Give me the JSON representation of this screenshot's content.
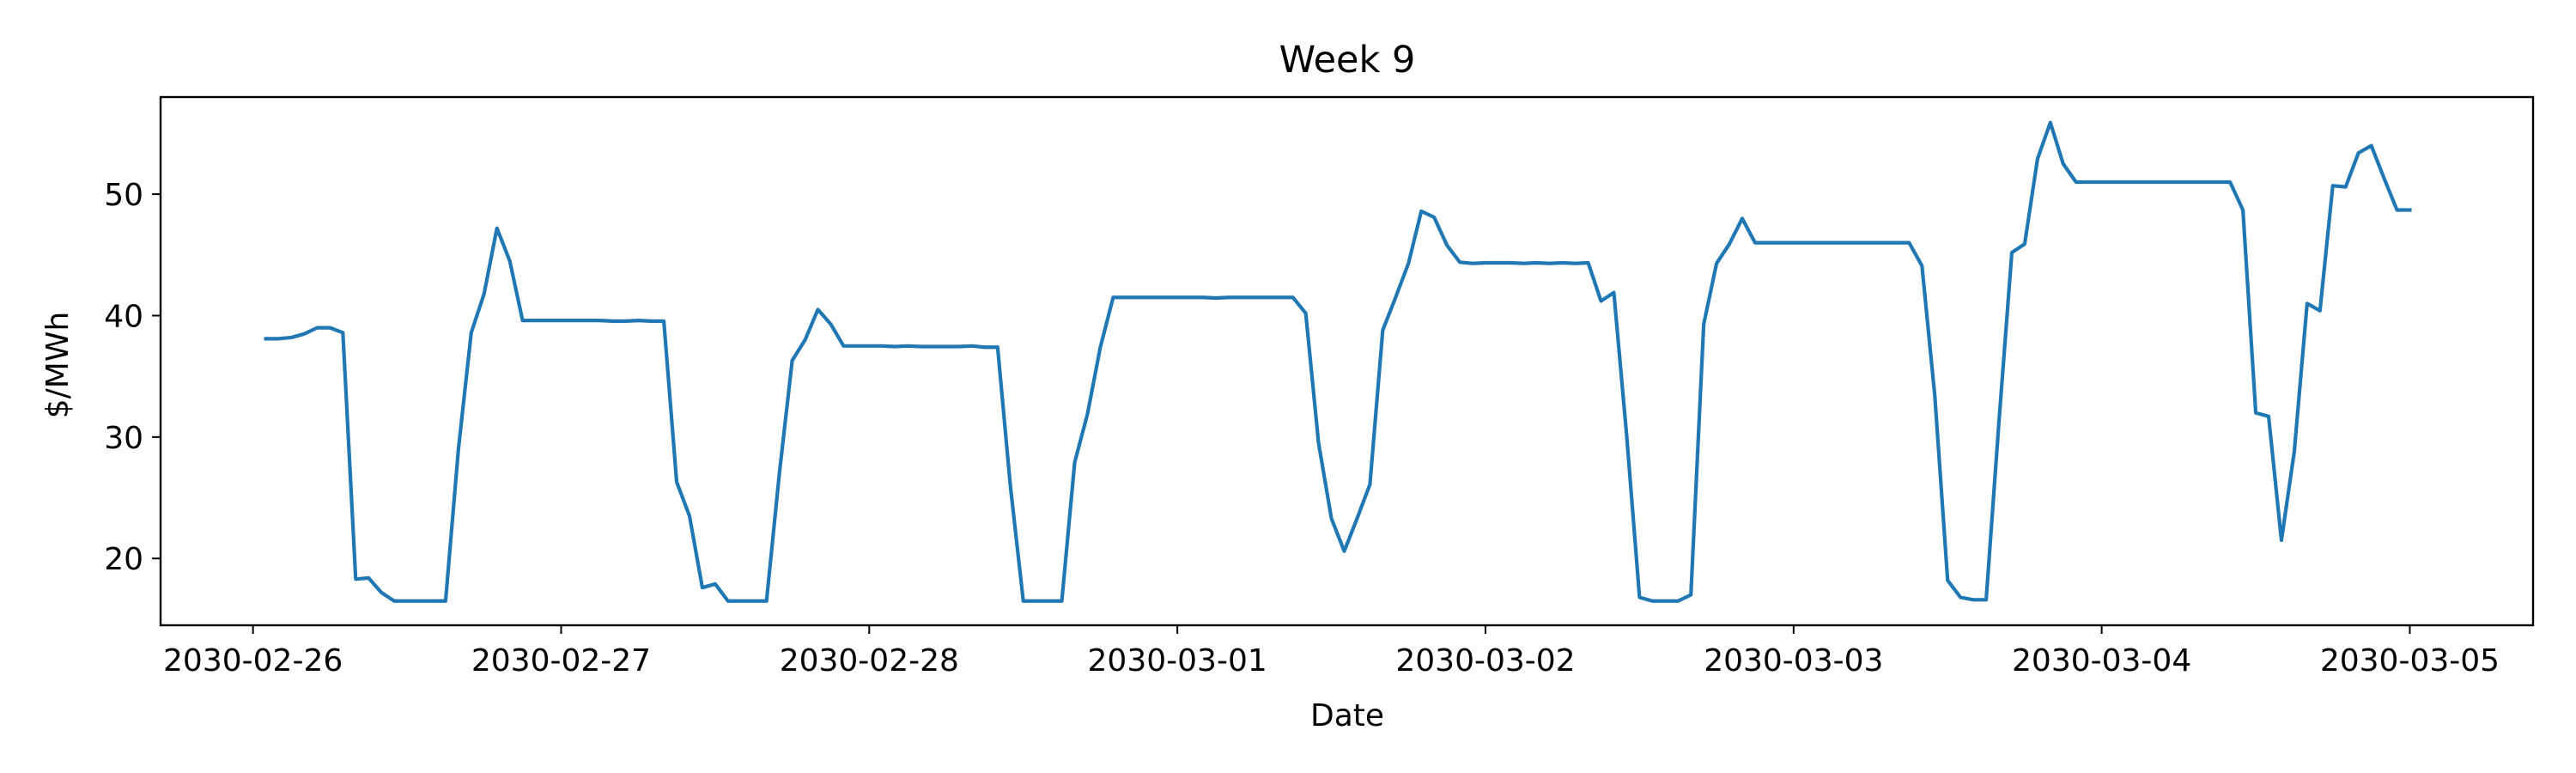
{
  "chart_data": {
    "type": "line",
    "title": "Week 9",
    "xlabel": "Date",
    "ylabel": "$/MWh",
    "x_ticks": [
      "2030-02-26",
      "2030-02-27",
      "2030-02-28",
      "2030-03-01",
      "2030-03-02",
      "2030-03-03",
      "2030-03-04",
      "2030-03-05"
    ],
    "y_ticks": [
      20,
      30,
      40,
      50
    ],
    "xlim": [
      "2030-02-25 16:48",
      "2030-03-05 09:36"
    ],
    "ylim": [
      14.5,
      58
    ],
    "grid": false,
    "colors": {
      "line": "#1f77b4"
    },
    "series": [
      {
        "x": [
          "2030-02-26 01:00",
          "2030-02-26 02:00",
          "2030-02-26 03:00",
          "2030-02-26 04:00",
          "2030-02-26 05:00",
          "2030-02-26 06:00",
          "2030-02-26 07:00",
          "2030-02-26 08:00",
          "2030-02-26 09:00",
          "2030-02-26 10:00",
          "2030-02-26 11:00",
          "2030-02-26 12:00",
          "2030-02-26 13:00",
          "2030-02-26 14:00",
          "2030-02-26 15:00",
          "2030-02-26 16:00",
          "2030-02-26 17:00",
          "2030-02-26 18:00",
          "2030-02-26 19:00",
          "2030-02-26 20:00",
          "2030-02-26 21:00",
          "2030-02-26 22:00",
          "2030-02-26 23:00",
          "2030-02-27 00:00",
          "2030-02-27 01:00",
          "2030-02-27 02:00",
          "2030-02-27 03:00",
          "2030-02-27 04:00",
          "2030-02-27 05:00",
          "2030-02-27 06:00",
          "2030-02-27 07:00",
          "2030-02-27 08:00",
          "2030-02-27 09:00",
          "2030-02-27 10:00",
          "2030-02-27 11:00",
          "2030-02-27 12:00",
          "2030-02-27 13:00",
          "2030-02-27 14:00",
          "2030-02-27 15:00",
          "2030-02-27 16:00",
          "2030-02-27 17:00",
          "2030-02-27 18:00",
          "2030-02-27 19:00",
          "2030-02-27 20:00",
          "2030-02-27 21:00",
          "2030-02-27 22:00",
          "2030-02-27 23:00",
          "2030-02-28 00:00",
          "2030-02-28 01:00",
          "2030-02-28 02:00",
          "2030-02-28 03:00",
          "2030-02-28 04:00",
          "2030-02-28 05:00",
          "2030-02-28 06:00",
          "2030-02-28 07:00",
          "2030-02-28 08:00",
          "2030-02-28 09:00",
          "2030-02-28 10:00",
          "2030-02-28 11:00",
          "2030-02-28 12:00",
          "2030-02-28 13:00",
          "2030-02-28 14:00",
          "2030-02-28 15:00",
          "2030-02-28 16:00",
          "2030-02-28 17:00",
          "2030-02-28 18:00",
          "2030-02-28 19:00",
          "2030-02-28 20:00",
          "2030-02-28 21:00",
          "2030-02-28 22:00",
          "2030-02-28 23:00",
          "2030-03-01 00:00",
          "2030-03-01 01:00",
          "2030-03-01 02:00",
          "2030-03-01 03:00",
          "2030-03-01 04:00",
          "2030-03-01 05:00",
          "2030-03-01 06:00",
          "2030-03-01 07:00",
          "2030-03-01 08:00",
          "2030-03-01 09:00",
          "2030-03-01 10:00",
          "2030-03-01 11:00",
          "2030-03-01 12:00",
          "2030-03-01 13:00",
          "2030-03-01 14:00",
          "2030-03-01 15:00",
          "2030-03-01 16:00",
          "2030-03-01 17:00",
          "2030-03-01 18:00",
          "2030-03-01 19:00",
          "2030-03-01 20:00",
          "2030-03-01 21:00",
          "2030-03-01 22:00",
          "2030-03-01 23:00",
          "2030-03-02 00:00",
          "2030-03-02 01:00",
          "2030-03-02 02:00",
          "2030-03-02 03:00",
          "2030-03-02 04:00",
          "2030-03-02 05:00",
          "2030-03-02 06:00",
          "2030-03-02 07:00",
          "2030-03-02 08:00",
          "2030-03-02 09:00",
          "2030-03-02 10:00",
          "2030-03-02 11:00",
          "2030-03-02 12:00",
          "2030-03-02 13:00",
          "2030-03-02 14:00",
          "2030-03-02 15:00",
          "2030-03-02 16:00",
          "2030-03-02 17:00",
          "2030-03-02 18:00",
          "2030-03-02 19:00",
          "2030-03-02 20:00",
          "2030-03-02 21:00",
          "2030-03-02 22:00",
          "2030-03-02 23:00",
          "2030-03-03 00:00",
          "2030-03-03 01:00",
          "2030-03-03 02:00",
          "2030-03-03 03:00",
          "2030-03-03 04:00",
          "2030-03-03 05:00",
          "2030-03-03 06:00",
          "2030-03-03 07:00",
          "2030-03-03 08:00",
          "2030-03-03 09:00",
          "2030-03-03 10:00",
          "2030-03-03 11:00",
          "2030-03-03 12:00",
          "2030-03-03 13:00",
          "2030-03-03 14:00",
          "2030-03-03 15:00",
          "2030-03-03 16:00",
          "2030-03-03 17:00",
          "2030-03-03 18:00",
          "2030-03-03 19:00",
          "2030-03-03 20:00",
          "2030-03-03 21:00",
          "2030-03-03 22:00",
          "2030-03-03 23:00",
          "2030-03-04 00:00",
          "2030-03-04 01:00",
          "2030-03-04 02:00",
          "2030-03-04 03:00",
          "2030-03-04 04:00",
          "2030-03-04 05:00",
          "2030-03-04 06:00",
          "2030-03-04 07:00",
          "2030-03-04 08:00",
          "2030-03-04 09:00",
          "2030-03-04 10:00",
          "2030-03-04 11:00",
          "2030-03-04 12:00",
          "2030-03-04 13:00",
          "2030-03-04 14:00",
          "2030-03-04 15:00",
          "2030-03-04 16:00",
          "2030-03-04 17:00",
          "2030-03-04 18:00",
          "2030-03-04 19:00",
          "2030-03-04 20:00",
          "2030-03-04 21:00",
          "2030-03-04 22:00",
          "2030-03-04 23:00",
          "2030-03-05 00:00"
        ],
        "y": [
          38.1,
          38.1,
          38.2,
          38.5,
          39.0,
          39.0,
          38.6,
          18.3,
          18.4,
          17.2,
          16.5,
          16.5,
          16.5,
          16.5,
          16.5,
          29.0,
          38.6,
          41.8,
          47.2,
          44.5,
          39.6,
          39.6,
          39.6,
          39.6,
          39.6,
          39.6,
          39.6,
          39.55,
          39.55,
          39.6,
          39.55,
          39.55,
          26.3,
          23.5,
          17.6,
          17.9,
          16.5,
          16.5,
          16.5,
          16.5,
          27.0,
          36.3,
          38.0,
          40.5,
          39.3,
          37.5,
          37.5,
          37.5,
          37.5,
          37.45,
          37.5,
          37.45,
          37.45,
          37.45,
          37.45,
          37.5,
          37.4,
          37.4,
          25.9,
          16.5,
          16.5,
          16.5,
          16.5,
          27.9,
          31.9,
          37.4,
          41.5,
          41.5,
          41.5,
          41.5,
          41.5,
          41.5,
          41.5,
          41.5,
          41.45,
          41.5,
          41.5,
          41.5,
          41.5,
          41.5,
          41.5,
          40.2,
          29.5,
          23.3,
          20.6,
          23.3,
          26.1,
          38.8,
          41.5,
          44.3,
          48.6,
          48.1,
          45.8,
          44.4,
          44.3,
          44.35,
          44.35,
          44.35,
          44.3,
          44.35,
          44.3,
          44.35,
          44.3,
          44.35,
          41.2,
          41.9,
          30.1,
          16.8,
          16.5,
          16.5,
          16.5,
          17.0,
          39.3,
          44.3,
          45.9,
          48.0,
          46.0,
          46.0,
          46.0,
          46.0,
          46.0,
          46.0,
          46.0,
          46.0,
          46.0,
          46.0,
          46.0,
          46.0,
          46.0,
          44.1,
          33.4,
          18.2,
          16.8,
          16.6,
          16.6,
          31.3,
          45.2,
          45.9,
          52.9,
          55.9,
          52.5,
          51.0,
          51.0,
          51.0,
          51.0,
          51.0,
          51.0,
          51.0,
          51.0,
          51.0,
          51.0,
          51.0,
          51.0,
          51.0,
          48.7,
          32.0,
          31.7,
          21.5,
          28.8,
          41.0,
          40.4,
          50.7,
          50.6,
          53.4,
          54.0,
          51.3,
          48.7,
          48.7
        ]
      }
    ]
  }
}
